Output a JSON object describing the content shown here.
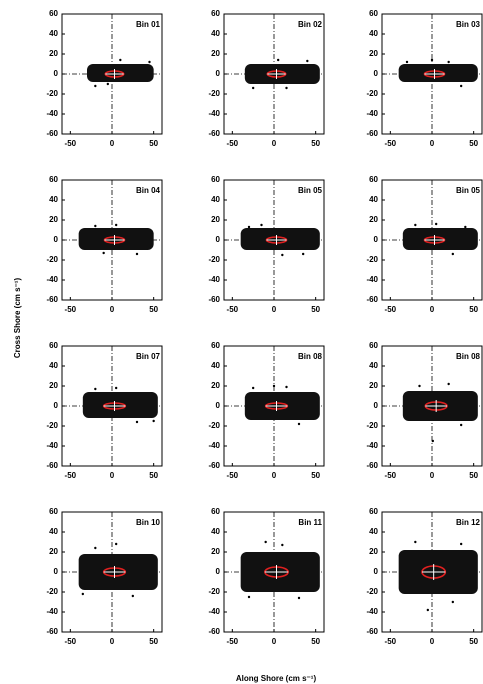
{
  "figure": {
    "xlabel": "Along Shore (cm s⁻¹)",
    "ylabel": "Cross Shore (cm s⁻¹)"
  },
  "chart_data": [
    {
      "type": "scatter",
      "title": "Bin 01",
      "xlim": [
        -60,
        60
      ],
      "ylim": [
        -60,
        60
      ],
      "xticks": [
        -50,
        0,
        50
      ],
      "yticks": [
        -60,
        -40,
        -20,
        0,
        20,
        40,
        60
      ],
      "cloud": {
        "x": [
          -30,
          50
        ],
        "y": [
          -8,
          10
        ]
      },
      "ellipse": {
        "center": [
          3,
          0
        ],
        "axes": [
          11,
          3
        ]
      },
      "x": [
        -20,
        45,
        10,
        -5
      ],
      "y": [
        -12,
        12,
        14,
        -10
      ]
    },
    {
      "type": "scatter",
      "title": "Bin 02",
      "xlim": [
        -60,
        60
      ],
      "ylim": [
        -60,
        60
      ],
      "xticks": [
        -50,
        0,
        50
      ],
      "yticks": [
        -60,
        -40,
        -20,
        0,
        20,
        40,
        60
      ],
      "cloud": {
        "x": [
          -35,
          55
        ],
        "y": [
          -10,
          10
        ]
      },
      "ellipse": {
        "center": [
          3,
          0
        ],
        "axes": [
          11,
          3
        ]
      },
      "x": [
        -25,
        40,
        5,
        15
      ],
      "y": [
        -14,
        13,
        14,
        -14
      ]
    },
    {
      "type": "scatter",
      "title": "Bin 03",
      "xlim": [
        -60,
        60
      ],
      "ylim": [
        -60,
        60
      ],
      "xticks": [
        -50,
        0,
        50
      ],
      "yticks": [
        -60,
        -40,
        -20,
        0,
        20,
        40,
        60
      ],
      "cloud": {
        "x": [
          -40,
          55
        ],
        "y": [
          -8,
          10
        ]
      },
      "ellipse": {
        "center": [
          3,
          0
        ],
        "axes": [
          12,
          3
        ]
      },
      "x": [
        -30,
        35,
        0,
        20
      ],
      "y": [
        12,
        -12,
        14,
        12
      ]
    },
    {
      "type": "scatter",
      "title": "Bin 04",
      "xlim": [
        -60,
        60
      ],
      "ylim": [
        -60,
        60
      ],
      "xticks": [
        -50,
        0,
        50
      ],
      "yticks": [
        -60,
        -40,
        -20,
        0,
        20,
        40,
        60
      ],
      "cloud": {
        "x": [
          -40,
          50
        ],
        "y": [
          -10,
          12
        ]
      },
      "ellipse": {
        "center": [
          3,
          0
        ],
        "axes": [
          12,
          3
        ]
      },
      "x": [
        -20,
        30,
        5,
        -10
      ],
      "y": [
        14,
        -14,
        15,
        -13
      ]
    },
    {
      "type": "scatter",
      "title": "Bin 05",
      "xlim": [
        -60,
        60
      ],
      "ylim": [
        -60,
        60
      ],
      "xticks": [
        -50,
        0,
        50
      ],
      "yticks": [
        -60,
        -40,
        -20,
        0,
        20,
        40,
        60
      ],
      "cloud": {
        "x": [
          -40,
          55
        ],
        "y": [
          -10,
          12
        ]
      },
      "ellipse": {
        "center": [
          3,
          0
        ],
        "axes": [
          12,
          3
        ]
      },
      "x": [
        -15,
        35,
        10,
        -30
      ],
      "y": [
        15,
        -14,
        -15,
        13
      ]
    },
    {
      "type": "scatter",
      "title": "Bin 05",
      "xlim": [
        -60,
        60
      ],
      "ylim": [
        -60,
        60
      ],
      "xticks": [
        -50,
        0,
        50
      ],
      "yticks": [
        -60,
        -40,
        -20,
        0,
        20,
        40,
        60
      ],
      "cloud": {
        "x": [
          -35,
          55
        ],
        "y": [
          -10,
          12
        ]
      },
      "ellipse": {
        "center": [
          3,
          0
        ],
        "axes": [
          12,
          3
        ]
      },
      "x": [
        -20,
        25,
        5,
        40
      ],
      "y": [
        15,
        -14,
        16,
        13
      ]
    },
    {
      "type": "scatter",
      "title": "Bin 07",
      "xlim": [
        -60,
        60
      ],
      "ylim": [
        -60,
        60
      ],
      "xticks": [
        -50,
        0,
        50
      ],
      "yticks": [
        -60,
        -40,
        -20,
        0,
        20,
        40,
        60
      ],
      "cloud": {
        "x": [
          -35,
          55
        ],
        "y": [
          -12,
          14
        ]
      },
      "ellipse": {
        "center": [
          3,
          0
        ],
        "axes": [
          13,
          3
        ]
      },
      "x": [
        -20,
        30,
        5,
        50
      ],
      "y": [
        17,
        -16,
        18,
        -15
      ]
    },
    {
      "type": "scatter",
      "title": "Bin 08",
      "xlim": [
        -60,
        60
      ],
      "ylim": [
        -60,
        60
      ],
      "xticks": [
        -50,
        0,
        50
      ],
      "yticks": [
        -60,
        -40,
        -20,
        0,
        20,
        40,
        60
      ],
      "cloud": {
        "x": [
          -35,
          55
        ],
        "y": [
          -14,
          14
        ]
      },
      "ellipse": {
        "center": [
          3,
          0
        ],
        "axes": [
          13,
          3
        ]
      },
      "x": [
        -25,
        30,
        0,
        15
      ],
      "y": [
        18,
        -18,
        20,
        19
      ]
    },
    {
      "type": "scatter",
      "title": "Bin 08",
      "xlim": [
        -60,
        60
      ],
      "ylim": [
        -60,
        60
      ],
      "xticks": [
        -50,
        0,
        50
      ],
      "yticks": [
        -60,
        -40,
        -20,
        0,
        20,
        40,
        60
      ],
      "cloud": {
        "x": [
          -35,
          55
        ],
        "y": [
          -15,
          15
        ]
      },
      "ellipse": {
        "center": [
          5,
          0
        ],
        "axes": [
          13,
          4
        ]
      },
      "x": [
        -15,
        1,
        20,
        35
      ],
      "y": [
        20,
        -35,
        22,
        -19
      ]
    },
    {
      "type": "scatter",
      "title": "Bin 10",
      "xlim": [
        -60,
        60
      ],
      "ylim": [
        -60,
        60
      ],
      "xticks": [
        -50,
        0,
        50
      ],
      "yticks": [
        -60,
        -40,
        -20,
        0,
        20,
        40,
        60
      ],
      "cloud": {
        "x": [
          -40,
          55
        ],
        "y": [
          -18,
          18
        ]
      },
      "ellipse": {
        "center": [
          3,
          0
        ],
        "axes": [
          13,
          4
        ]
      },
      "x": [
        -20,
        25,
        5,
        -35
      ],
      "y": [
        24,
        -24,
        28,
        -22
      ]
    },
    {
      "type": "scatter",
      "title": "Bin 11",
      "xlim": [
        -60,
        60
      ],
      "ylim": [
        -60,
        60
      ],
      "xticks": [
        -50,
        0,
        50
      ],
      "yticks": [
        -60,
        -40,
        -20,
        0,
        20,
        40,
        60
      ],
      "cloud": {
        "x": [
          -40,
          55
        ],
        "y": [
          -20,
          20
        ]
      },
      "ellipse": {
        "center": [
          3,
          0
        ],
        "axes": [
          14,
          5
        ]
      },
      "x": [
        -10,
        30,
        10,
        -30
      ],
      "y": [
        30,
        -26,
        27,
        -25
      ]
    },
    {
      "type": "scatter",
      "title": "Bin 12",
      "xlim": [
        -60,
        60
      ],
      "ylim": [
        -60,
        60
      ],
      "xticks": [
        -50,
        0,
        50
      ],
      "yticks": [
        -60,
        -40,
        -20,
        0,
        20,
        40,
        60
      ],
      "cloud": {
        "x": [
          -40,
          55
        ],
        "y": [
          -22,
          22
        ]
      },
      "ellipse": {
        "center": [
          2,
          0
        ],
        "axes": [
          14,
          6
        ]
      },
      "x": [
        -20,
        25,
        -5,
        35
      ],
      "y": [
        30,
        -30,
        -38,
        28
      ]
    }
  ]
}
